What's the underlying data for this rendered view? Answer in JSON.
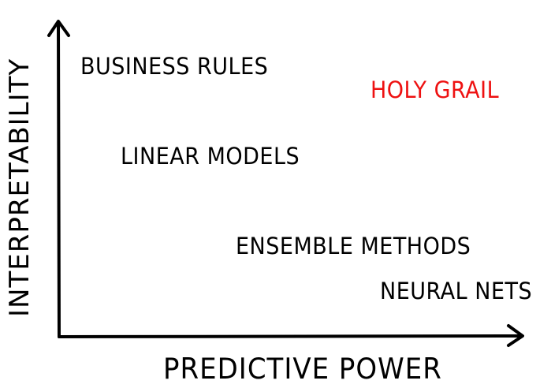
{
  "diagram": {
    "x_axis_label": "PREDICTIVE POWER",
    "y_axis_label": "INTERPRETABILITY",
    "items": [
      {
        "key": "business-rules",
        "label": "BUSINESS RULES",
        "color": "#000000"
      },
      {
        "key": "holy-grail",
        "label": "HOLY GRAIL",
        "color": "#ee1111"
      },
      {
        "key": "linear-models",
        "label": "LINEAR MODELS",
        "color": "#000000"
      },
      {
        "key": "ensemble-methods",
        "label": "ENSEMBLE METHODS",
        "color": "#000000"
      },
      {
        "key": "neural-nets",
        "label": "NEURAL NETS",
        "color": "#000000"
      }
    ],
    "line_color": "#000000"
  }
}
